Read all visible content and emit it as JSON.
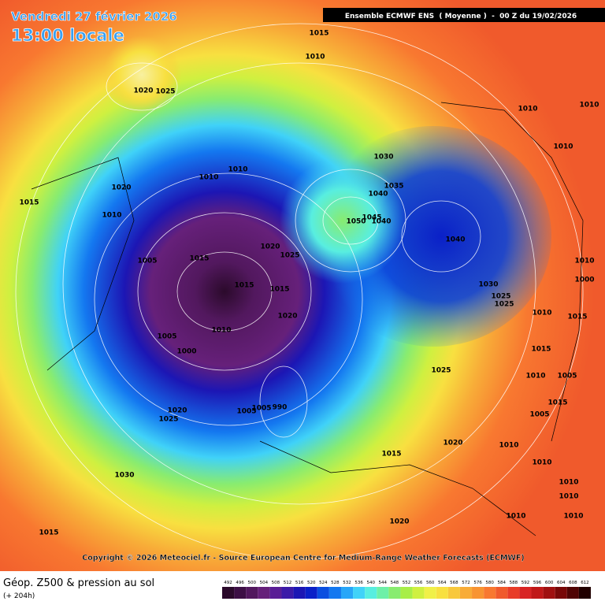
{
  "header": {
    "date": "Vendredi 27 février 2026",
    "time": "13:00 locale",
    "model": "Ensemble ECMWF ENS  ( Moyenne )  -  00 Z du 19/02/2026"
  },
  "copyright": "Copyright © 2026 Meteociel.fr - Source European Centre for Medium-Range Weather Forecasts (ECMWF)",
  "footer": {
    "title": "Géop. Z500 & pression au sol",
    "lead": "(+ 204h)"
  },
  "legend": {
    "values": [
      492,
      496,
      500,
      504,
      508,
      512,
      516,
      520,
      524,
      528,
      532,
      536,
      540,
      544,
      548,
      552,
      556,
      560,
      564,
      568,
      572,
      576,
      580,
      584,
      588,
      592,
      596,
      600,
      604,
      608,
      612
    ],
    "colors": [
      "#2b0a2b",
      "#3d0f45",
      "#52185e",
      "#66207a",
      "#5a1e96",
      "#3c1aa8",
      "#1c16b4",
      "#0a20c8",
      "#0a4ee0",
      "#1478f0",
      "#28a6f8",
      "#40d2f8",
      "#58eee0",
      "#6ef0a8",
      "#88ec70",
      "#a8ee48",
      "#cff040",
      "#f0f048",
      "#f8e040",
      "#f8c83c",
      "#f8ac38",
      "#f89432",
      "#f87830",
      "#f05a2c",
      "#e83c28",
      "#d82424",
      "#c01818",
      "#a01010",
      "#780808",
      "#500404",
      "#200000"
    ]
  },
  "pressure_labels": [
    "1015",
    "1010",
    "1020",
    "1025",
    "1010",
    "1010",
    "1010",
    "1030",
    "1010",
    "1010",
    "1020",
    "1035",
    "1040",
    "1015",
    "1010",
    "1045",
    "1050",
    "1040",
    "1040",
    "1005",
    "1015",
    "1020",
    "1025",
    "1010",
    "1000",
    "1030",
    "1015",
    "1015",
    "1025",
    "1025",
    "1020",
    "1010",
    "1015",
    "1010",
    "1005",
    "1000",
    "1015",
    "1025",
    "1010",
    "1005",
    "1020",
    "1025",
    "1005",
    "1005",
    "990",
    "1005",
    "1015",
    "1020",
    "1010",
    "1015",
    "1010",
    "1030",
    "1010",
    "1010",
    "1020",
    "1015",
    "1010",
    "1010"
  ]
}
